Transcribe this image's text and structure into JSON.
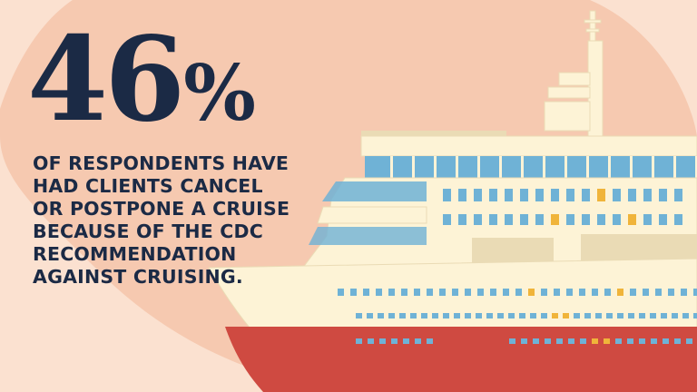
{
  "stat": {
    "number": "46",
    "percent_sign": "%",
    "caption_lines": [
      "OF RESPONDENTS HAVE",
      "HAD CLIENTS CANCEL",
      "OR POSTPONE A CRUISE",
      "BECAUSE OF THE CDC",
      "RECOMMENDATION",
      "AGAINST CRUISING."
    ]
  },
  "colors": {
    "background": "#fbe1d0",
    "blob": "#f6c9b0",
    "text": "#1b2a45",
    "hull_red": "#cf4a41",
    "ship_cream": "#fdf3d6",
    "ship_shade": "#eadbb5",
    "window_blue": "#6fb2d6",
    "window_yellow": "#f0b43a"
  },
  "illustration": {
    "subject": "cruise-ship"
  }
}
